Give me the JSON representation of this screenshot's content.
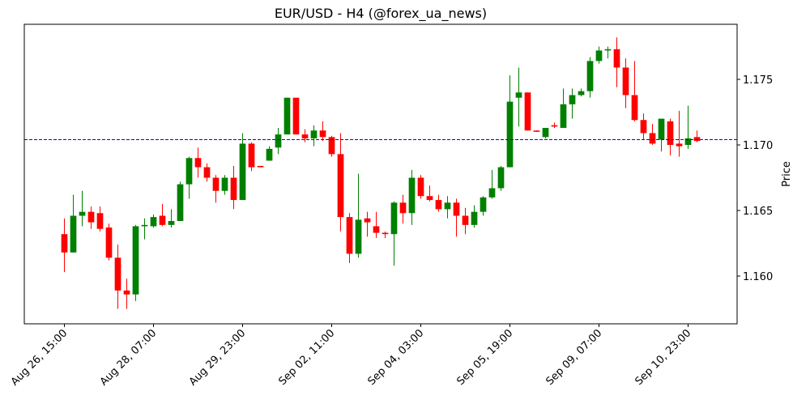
{
  "chart_data": {
    "type": "candlestick",
    "title": "EUR/USD - H4 (@forex_ua_news)",
    "y_label": "Price",
    "categories": [
      "Aug 26, 15:00",
      null,
      null,
      null,
      null,
      null,
      null,
      null,
      null,
      null,
      "Aug 28, 07:00",
      null,
      null,
      null,
      null,
      null,
      null,
      null,
      null,
      null,
      "Aug 29, 23:00",
      null,
      null,
      null,
      null,
      null,
      null,
      null,
      null,
      null,
      "Sep 02, 11:00",
      null,
      null,
      null,
      null,
      null,
      null,
      null,
      null,
      null,
      "Sep 04, 03:00",
      null,
      null,
      null,
      null,
      null,
      null,
      null,
      null,
      null,
      "Sep 05, 19:00",
      null,
      null,
      null,
      null,
      null,
      null,
      null,
      null,
      null,
      "Sep 09, 07:00",
      null,
      null,
      null,
      null,
      null,
      null,
      null,
      null,
      null,
      "Sep 10, 23:00",
      null
    ],
    "open": [
      1.1632,
      1.1618,
      1.1646,
      1.1649,
      1.1648,
      1.1637,
      1.1614,
      1.1589,
      1.1586,
      1.1638,
      1.1638,
      1.1646,
      1.1639,
      1.1642,
      1.167,
      1.169,
      1.1683,
      1.1675,
      1.1665,
      1.1675,
      1.1658,
      1.1701,
      1.1684,
      1.1688,
      1.1698,
      1.1708,
      1.1736,
      1.1708,
      1.1705,
      1.1711,
      1.1706,
      1.1693,
      1.1645,
      1.1617,
      1.1644,
      1.1638,
      1.1633,
      1.1632,
      1.1656,
      1.1648,
      1.1675,
      1.1661,
      1.1658,
      1.1651,
      1.1656,
      1.1646,
      1.1639,
      1.1649,
      1.166,
      1.1667,
      1.1683,
      1.1736,
      1.174,
      1.1711,
      1.1706,
      1.1715,
      1.1713,
      1.1731,
      1.1738,
      1.1741,
      1.1764,
      1.1772,
      1.1773,
      1.1759,
      1.1738,
      1.1719,
      1.1709,
      1.1704,
      1.1718,
      1.1701,
      1.17,
      1.1706
    ],
    "high": [
      1.1644,
      1.1662,
      1.1665,
      1.1653,
      1.1653,
      1.164,
      1.1624,
      1.1598,
      1.1639,
      1.1644,
      1.1647,
      1.1655,
      1.1651,
      1.1672,
      1.1691,
      1.1698,
      1.1686,
      1.1677,
      1.1677,
      1.1684,
      1.1709,
      1.1702,
      1.1684,
      1.1699,
      1.1713,
      1.1736,
      1.1736,
      1.1712,
      1.1715,
      1.1718,
      1.1707,
      1.1709,
      1.1648,
      1.1678,
      1.1649,
      1.1649,
      1.1634,
      1.1657,
      1.1662,
      1.1681,
      1.1677,
      1.1669,
      1.1662,
      1.1661,
      1.1659,
      1.1652,
      1.1654,
      1.1661,
      1.1681,
      1.1684,
      1.1753,
      1.1759,
      1.174,
      1.1711,
      1.1713,
      1.1717,
      1.1743,
      1.1743,
      1.1743,
      1.1767,
      1.1775,
      1.1775,
      1.1782,
      1.1766,
      1.1764,
      1.1724,
      1.1716,
      1.172,
      1.172,
      1.1726,
      1.173,
      1.1711
    ],
    "low": [
      1.1603,
      1.1618,
      1.1638,
      1.1636,
      1.1634,
      1.1612,
      1.1575,
      1.1575,
      1.1581,
      1.1628,
      1.1637,
      1.1638,
      1.1637,
      1.1642,
      1.1659,
      1.1675,
      1.1672,
      1.1656,
      1.1662,
      1.1651,
      1.1658,
      1.168,
      1.1683,
      1.1688,
      1.1693,
      1.1708,
      1.1708,
      1.1702,
      1.1699,
      1.1703,
      1.1691,
      1.1634,
      1.161,
      1.1614,
      1.163,
      1.1629,
      1.1629,
      1.1608,
      1.164,
      1.1639,
      1.1659,
      1.1657,
      1.1649,
      1.1644,
      1.163,
      1.1632,
      1.1637,
      1.1646,
      1.1659,
      1.1665,
      1.1683,
      1.1714,
      1.1711,
      1.171,
      1.1705,
      1.1713,
      1.1713,
      1.172,
      1.1737,
      1.1736,
      1.1762,
      1.1766,
      1.1744,
      1.1728,
      1.1718,
      1.1704,
      1.17,
      1.1695,
      1.1692,
      1.1691,
      1.1697,
      1.1702
    ],
    "close": [
      1.1618,
      1.1646,
      1.1649,
      1.1641,
      1.1636,
      1.1614,
      1.1589,
      1.1586,
      1.1638,
      1.1639,
      1.1645,
      1.1639,
      1.1642,
      1.167,
      1.169,
      1.1683,
      1.1675,
      1.1665,
      1.1675,
      1.1658,
      1.1701,
      1.1683,
      1.1683,
      1.1697,
      1.1708,
      1.1736,
      1.1708,
      1.1705,
      1.1711,
      1.1706,
      1.1693,
      1.1645,
      1.1617,
      1.1643,
      1.1641,
      1.1633,
      1.1632,
      1.1656,
      1.1648,
      1.1675,
      1.1661,
      1.1658,
      1.1651,
      1.1656,
      1.1646,
      1.1639,
      1.1649,
      1.166,
      1.1667,
      1.1683,
      1.1733,
      1.174,
      1.1711,
      1.171,
      1.1713,
      1.1714,
      1.1731,
      1.1738,
      1.1741,
      1.1764,
      1.1772,
      1.1773,
      1.1759,
      1.1738,
      1.1719,
      1.1709,
      1.1701,
      1.172,
      1.17,
      1.1699,
      1.1705,
      1.1703
    ],
    "up_color": "green",
    "down_color": "red",
    "hline": {
      "value": 1.1704,
      "color": "blue"
    },
    "xlim": [
      -4.5,
      75.5
    ],
    "ylim": [
      1.15636,
      1.1792
    ],
    "yticks": [
      {
        "value": 1.16,
        "label": "1.160"
      },
      {
        "value": 1.165,
        "label": "1.165"
      },
      {
        "value": 1.17,
        "label": "1.170"
      },
      {
        "value": 1.175,
        "label": "1.175"
      }
    ]
  }
}
